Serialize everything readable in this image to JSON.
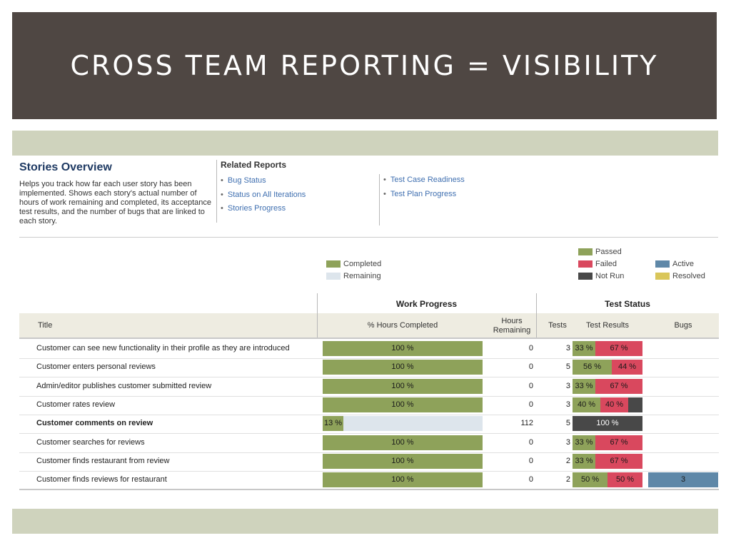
{
  "slide": {
    "title": "CROSS TEAM REPORTING = VISIBILITY"
  },
  "overview": {
    "title": "Stories Overview",
    "description": "Helps you track how far each user story has been implemented. Shows each story's actual number of hours of work remaining and completed, its acceptance test results, and the number of bugs that are linked to each story."
  },
  "related": {
    "title": "Related Reports",
    "col1": [
      "Bug Status",
      "Status on All Iterations",
      "Stories Progress"
    ],
    "col2": [
      "Test Case Readiness",
      "Test Plan Progress"
    ]
  },
  "legend": {
    "work": [
      {
        "label": "Completed",
        "color": "#8ea25a"
      },
      {
        "label": "Remaining",
        "color": "#dde5ec"
      }
    ],
    "tests": [
      {
        "label": "Passed",
        "color": "#8ea25a"
      },
      {
        "label": "Failed",
        "color": "#d9485e"
      },
      {
        "label": "Not Run",
        "color": "#484848"
      }
    ],
    "bugs": [
      {
        "label": "Active",
        "color": "#5f88a8"
      },
      {
        "label": "Resolved",
        "color": "#d9c65a"
      }
    ]
  },
  "table": {
    "groups": {
      "work": "Work Progress",
      "tests": "Test Status"
    },
    "headers": {
      "title": "Title",
      "pct": "% Hours Completed",
      "hours": "Hours Remaining",
      "tests": "Tests",
      "results": "Test Results",
      "bugs": "Bugs"
    },
    "rows": [
      {
        "title": "Customer can see new functionality in their profile as they are introduced",
        "bold": false,
        "pct": 100,
        "pct_label": "100 %",
        "hours": "0",
        "tests": "3",
        "passed": 33,
        "failed": 67,
        "notrun": 0,
        "passed_label": "33 %",
        "failed_label": "67 %",
        "notrun_label": "",
        "bugs": ""
      },
      {
        "title": "Customer enters personal reviews",
        "bold": false,
        "pct": 100,
        "pct_label": "100 %",
        "hours": "0",
        "tests": "5",
        "passed": 56,
        "failed": 44,
        "notrun": 0,
        "passed_label": "56 %",
        "failed_label": "44 %",
        "notrun_label": "",
        "bugs": ""
      },
      {
        "title": "Admin/editor publishes customer submitted review",
        "bold": false,
        "pct": 100,
        "pct_label": "100 %",
        "hours": "0",
        "tests": "3",
        "passed": 33,
        "failed": 67,
        "notrun": 0,
        "passed_label": "33 %",
        "failed_label": "67 %",
        "notrun_label": "",
        "bugs": ""
      },
      {
        "title": "Customer rates review",
        "bold": false,
        "pct": 100,
        "pct_label": "100 %",
        "hours": "0",
        "tests": "3",
        "passed": 40,
        "failed": 40,
        "notrun": 20,
        "passed_label": "40 %",
        "failed_label": "40 %",
        "notrun_label": "",
        "bugs": ""
      },
      {
        "title": "Customer comments on review",
        "bold": true,
        "pct": 13,
        "pct_label": "13 %",
        "hours": "112",
        "tests": "5",
        "passed": 0,
        "failed": 0,
        "notrun": 100,
        "passed_label": "",
        "failed_label": "",
        "notrun_label": "100 %",
        "bugs": ""
      },
      {
        "title": "Customer searches for reviews",
        "bold": false,
        "pct": 100,
        "pct_label": "100 %",
        "hours": "0",
        "tests": "3",
        "passed": 33,
        "failed": 67,
        "notrun": 0,
        "passed_label": "33 %",
        "failed_label": "67 %",
        "notrun_label": "",
        "bugs": ""
      },
      {
        "title": "Customer finds restaurant from review",
        "bold": false,
        "pct": 100,
        "pct_label": "100 %",
        "hours": "0",
        "tests": "2",
        "passed": 33,
        "failed": 67,
        "notrun": 0,
        "passed_label": "33 %",
        "failed_label": "67 %",
        "notrun_label": "",
        "bugs": ""
      },
      {
        "title": "Customer finds reviews for restaurant",
        "bold": false,
        "pct": 100,
        "pct_label": "100 %",
        "hours": "0",
        "tests": "2",
        "passed": 50,
        "failed": 50,
        "notrun": 0,
        "passed_label": "50 %",
        "failed_label": "50 %",
        "notrun_label": "",
        "bugs": "3"
      }
    ]
  }
}
